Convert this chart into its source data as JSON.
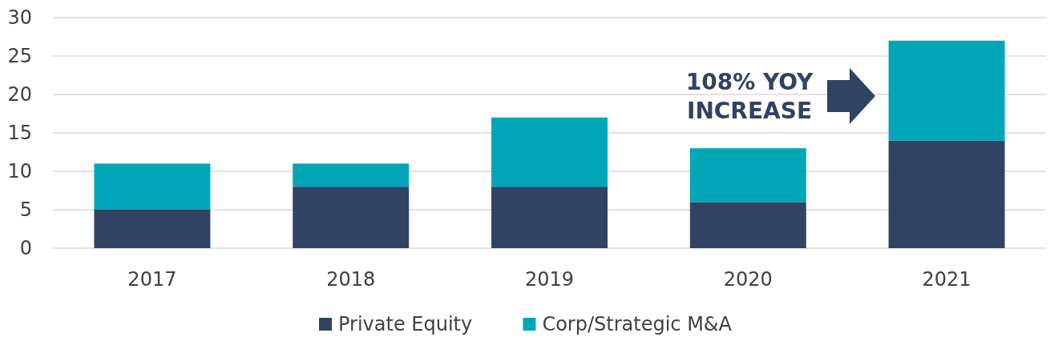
{
  "chart_data": {
    "type": "bar",
    "stacked": true,
    "categories": [
      "2017",
      "2018",
      "2019",
      "2020",
      "2021"
    ],
    "series": [
      {
        "name": "Private Equity",
        "color": "#314363",
        "values": [
          5,
          8,
          8,
          6,
          14
        ]
      },
      {
        "name": "Corp/Strategic M&A",
        "color": "#00a6b8",
        "values": [
          6,
          3,
          9,
          7,
          13
        ]
      }
    ],
    "ylim": [
      0,
      30
    ],
    "yticks": [
      0,
      5,
      10,
      15,
      20,
      25,
      30
    ],
    "grid": "y",
    "legend": "bottom",
    "annotations": [
      "108% YOY INCREASE"
    ]
  }
}
